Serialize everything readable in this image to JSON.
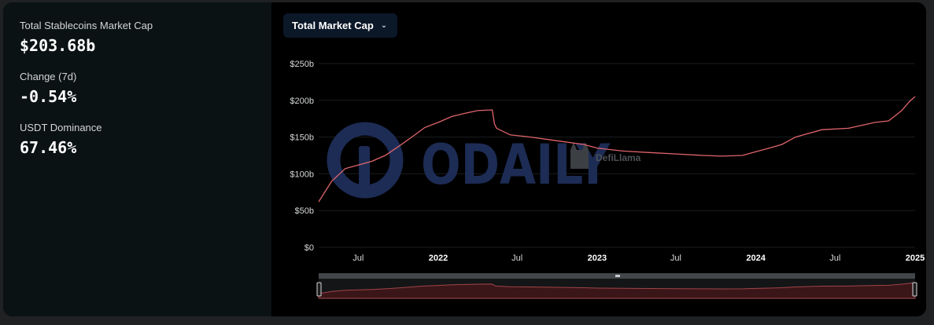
{
  "stats": [
    {
      "label": "Total Stablecoins Market Cap",
      "value": "$203.68b"
    },
    {
      "label": "Change (7d)",
      "value": "-0.54%"
    },
    {
      "label": "USDT Dominance",
      "value": "67.46%"
    }
  ],
  "dropdown": {
    "label": "Total Market Cap",
    "icon": "chevron-down-icon"
  },
  "watermarks": {
    "main": "ODAILY",
    "brand": "DefiLlama"
  },
  "colors": {
    "line": "#e0656c",
    "grid": "#1a1c1e",
    "watermark": "#1d2c55"
  },
  "chart_data": {
    "type": "line",
    "title": "",
    "xlabel": "",
    "ylabel": "",
    "ylim": [
      0,
      250
    ],
    "yticks": [
      0,
      50,
      100,
      150,
      200,
      250
    ],
    "ytick_labels": [
      "$0",
      "$50b",
      "$100b",
      "$150b",
      "$200b",
      "$250b"
    ],
    "xlim": [
      "2021-04-01",
      "2025-01-01"
    ],
    "xticks": [
      {
        "date": "2021-07-01",
        "label": "Jul",
        "bold": false
      },
      {
        "date": "2022-01-01",
        "label": "2022",
        "bold": true
      },
      {
        "date": "2022-07-01",
        "label": "Jul",
        "bold": false
      },
      {
        "date": "2023-01-01",
        "label": "2023",
        "bold": true
      },
      {
        "date": "2023-07-01",
        "label": "Jul",
        "bold": false
      },
      {
        "date": "2024-01-01",
        "label": "2024",
        "bold": true
      },
      {
        "date": "2024-07-01",
        "label": "Jul",
        "bold": false
      },
      {
        "date": "2025-01-01",
        "label": "2025",
        "bold": true
      }
    ],
    "series": [
      {
        "x": [
          "2021-04-01",
          "2021-05-01",
          "2021-06-01",
          "2021-07-01",
          "2021-08-01",
          "2021-09-01",
          "2021-10-01",
          "2021-11-01",
          "2021-12-01",
          "2022-01-01",
          "2022-02-01",
          "2022-03-01",
          "2022-04-01",
          "2022-05-05",
          "2022-05-10",
          "2022-05-15",
          "2022-06-15",
          "2022-08-01",
          "2022-10-01",
          "2022-12-01",
          "2023-01-01",
          "2023-03-01",
          "2023-05-01",
          "2023-07-01",
          "2023-09-01",
          "2023-10-15",
          "2023-12-01",
          "2024-01-01",
          "2024-02-01",
          "2024-03-01",
          "2024-04-01",
          "2024-06-01",
          "2024-08-01",
          "2024-10-01",
          "2024-11-01",
          "2024-12-01",
          "2024-12-20",
          "2025-01-01"
        ],
        "y": [
          62,
          90,
          107,
          112,
          117,
          125,
          137,
          150,
          163,
          170,
          178,
          182,
          186,
          187,
          168,
          162,
          153,
          150,
          145,
          140,
          135,
          131,
          129,
          127,
          125,
          124,
          125,
          130,
          135,
          140,
          150,
          160,
          162,
          170,
          172,
          186,
          199,
          205
        ]
      }
    ]
  }
}
